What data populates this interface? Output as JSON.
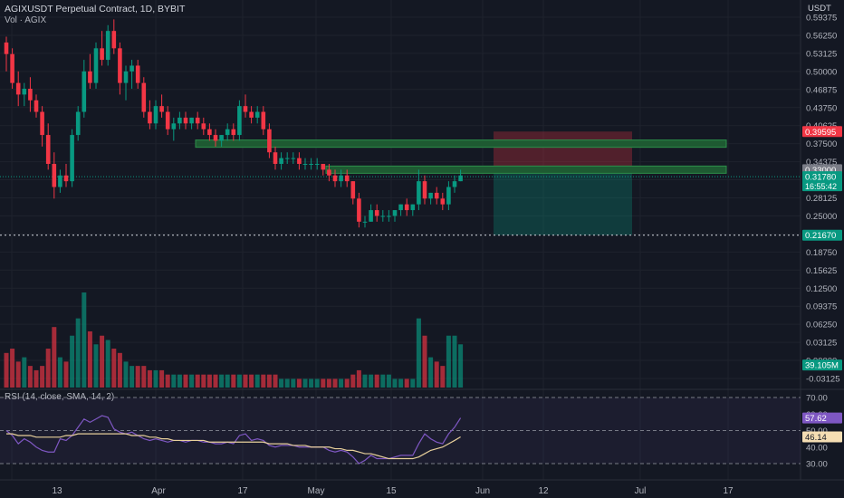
{
  "header": {
    "title": "AGIXUSDT Perpetual Contract, 1D, BYBIT",
    "volume_label": "Vol · AGIX",
    "currency": "USDT"
  },
  "price_axis": {
    "ticks": [
      "0.59375",
      "0.56250",
      "0.53125",
      "0.50000",
      "0.46875",
      "0.43750",
      "0.40625",
      "0.37500",
      "0.34375",
      "0.31250",
      "0.28125",
      "0.25000",
      "0.21875",
      "0.18750",
      "0.15625",
      "0.12500",
      "0.09375",
      "0.06250",
      "0.03125",
      "0.00000",
      "-0.03125"
    ],
    "min": -0.03125,
    "max": 0.59375,
    "badges": [
      {
        "text": "0.39595",
        "value": 0.39595,
        "color": "#f23645"
      },
      {
        "text": "0.33000",
        "value": 0.33,
        "color": "#7a7d87"
      },
      {
        "text": "0.31780",
        "value": 0.3178,
        "color": "#089981",
        "sub": "16:55:42"
      },
      {
        "text": "0.21670",
        "value": 0.2167,
        "color": "#089981"
      },
      {
        "text": "39.105M",
        "value": -0.008,
        "color": "#089981"
      }
    ]
  },
  "rsi": {
    "label": "RSI (14, close, SMA, 14, 2)",
    "ticks": [
      "70.00",
      "60.00",
      "50.00",
      "40.00",
      "30.00"
    ],
    "badges": [
      {
        "text": "57.62",
        "value": 57.62,
        "color": "#7e57c2"
      },
      {
        "text": "46.14",
        "value": 46.14,
        "color": "#f5deb3"
      }
    ]
  },
  "time_axis": [
    "13",
    "Apr",
    "17",
    "May",
    "15",
    "Jun",
    "12",
    "Jul",
    "17"
  ],
  "colors": {
    "up": "#089981",
    "down": "#f23645",
    "rsi": "#7e57c2",
    "rsi_ma": "#e8d09b",
    "zone": "#1e5a32"
  },
  "chart_data": {
    "type": "candlestick",
    "candles": [
      [
        0.55,
        0.56,
        0.5,
        0.53
      ],
      [
        0.53,
        0.54,
        0.47,
        0.48
      ],
      [
        0.48,
        0.5,
        0.44,
        0.46
      ],
      [
        0.46,
        0.48,
        0.44,
        0.47
      ],
      [
        0.47,
        0.49,
        0.43,
        0.45
      ],
      [
        0.45,
        0.46,
        0.42,
        0.43
      ],
      [
        0.43,
        0.44,
        0.37,
        0.39
      ],
      [
        0.39,
        0.41,
        0.33,
        0.34
      ],
      [
        0.34,
        0.36,
        0.28,
        0.3
      ],
      [
        0.3,
        0.33,
        0.29,
        0.32
      ],
      [
        0.32,
        0.34,
        0.3,
        0.31
      ],
      [
        0.31,
        0.4,
        0.3,
        0.39
      ],
      [
        0.39,
        0.44,
        0.38,
        0.43
      ],
      [
        0.43,
        0.52,
        0.42,
        0.5
      ],
      [
        0.5,
        0.53,
        0.47,
        0.48
      ],
      [
        0.48,
        0.55,
        0.47,
        0.54
      ],
      [
        0.54,
        0.57,
        0.51,
        0.52
      ],
      [
        0.52,
        0.58,
        0.51,
        0.57
      ],
      [
        0.57,
        0.59,
        0.53,
        0.54
      ],
      [
        0.54,
        0.55,
        0.46,
        0.48
      ],
      [
        0.48,
        0.51,
        0.45,
        0.5
      ],
      [
        0.5,
        0.52,
        0.47,
        0.51
      ],
      [
        0.51,
        0.52,
        0.47,
        0.48
      ],
      [
        0.48,
        0.49,
        0.42,
        0.43
      ],
      [
        0.43,
        0.45,
        0.4,
        0.41
      ],
      [
        0.41,
        0.45,
        0.4,
        0.44
      ],
      [
        0.44,
        0.46,
        0.42,
        0.43
      ],
      [
        0.43,
        0.44,
        0.39,
        0.4
      ],
      [
        0.4,
        0.42,
        0.38,
        0.41
      ],
      [
        0.41,
        0.43,
        0.4,
        0.42
      ],
      [
        0.42,
        0.43,
        0.4,
        0.41
      ],
      [
        0.41,
        0.42,
        0.4,
        0.42
      ],
      [
        0.42,
        0.43,
        0.4,
        0.41
      ],
      [
        0.41,
        0.42,
        0.39,
        0.4
      ],
      [
        0.4,
        0.41,
        0.38,
        0.39
      ],
      [
        0.39,
        0.4,
        0.37,
        0.38
      ],
      [
        0.38,
        0.39,
        0.37,
        0.39
      ],
      [
        0.39,
        0.41,
        0.38,
        0.4
      ],
      [
        0.4,
        0.41,
        0.38,
        0.39
      ],
      [
        0.39,
        0.45,
        0.38,
        0.44
      ],
      [
        0.44,
        0.46,
        0.42,
        0.43
      ],
      [
        0.43,
        0.44,
        0.41,
        0.42
      ],
      [
        0.42,
        0.44,
        0.41,
        0.43
      ],
      [
        0.43,
        0.44,
        0.39,
        0.4
      ],
      [
        0.4,
        0.41,
        0.35,
        0.36
      ],
      [
        0.36,
        0.37,
        0.33,
        0.34
      ],
      [
        0.34,
        0.36,
        0.33,
        0.35
      ],
      [
        0.35,
        0.36,
        0.34,
        0.35
      ],
      [
        0.35,
        0.36,
        0.34,
        0.35
      ],
      [
        0.35,
        0.36,
        0.33,
        0.34
      ],
      [
        0.34,
        0.35,
        0.33,
        0.34
      ],
      [
        0.34,
        0.35,
        0.33,
        0.34
      ],
      [
        0.34,
        0.35,
        0.33,
        0.34
      ],
      [
        0.34,
        0.34,
        0.32,
        0.33
      ],
      [
        0.33,
        0.34,
        0.31,
        0.32
      ],
      [
        0.32,
        0.33,
        0.3,
        0.31
      ],
      [
        0.31,
        0.33,
        0.3,
        0.32
      ],
      [
        0.32,
        0.33,
        0.3,
        0.31
      ],
      [
        0.31,
        0.31,
        0.27,
        0.28
      ],
      [
        0.28,
        0.29,
        0.23,
        0.24
      ],
      [
        0.24,
        0.25,
        0.23,
        0.24
      ],
      [
        0.24,
        0.27,
        0.24,
        0.26
      ],
      [
        0.26,
        0.27,
        0.24,
        0.25
      ],
      [
        0.25,
        0.26,
        0.24,
        0.25
      ],
      [
        0.25,
        0.26,
        0.24,
        0.25
      ],
      [
        0.25,
        0.26,
        0.24,
        0.26
      ],
      [
        0.26,
        0.27,
        0.25,
        0.27
      ],
      [
        0.27,
        0.28,
        0.25,
        0.26
      ],
      [
        0.26,
        0.27,
        0.25,
        0.27
      ],
      [
        0.27,
        0.33,
        0.26,
        0.31
      ],
      [
        0.31,
        0.32,
        0.27,
        0.28
      ],
      [
        0.28,
        0.29,
        0.27,
        0.29
      ],
      [
        0.29,
        0.3,
        0.27,
        0.28
      ],
      [
        0.28,
        0.29,
        0.26,
        0.27
      ],
      [
        0.27,
        0.31,
        0.26,
        0.3
      ],
      [
        0.3,
        0.32,
        0.29,
        0.31
      ],
      [
        0.31,
        0.33,
        0.31,
        0.32
      ]
    ],
    "volume": [
      8,
      9,
      6,
      7,
      5,
      4,
      5,
      9,
      14,
      7,
      6,
      12,
      16,
      22,
      13,
      10,
      12,
      11,
      9,
      8,
      6,
      5,
      5,
      5,
      4,
      4,
      4,
      3,
      3,
      3,
      3,
      3,
      3,
      3,
      3,
      3,
      3,
      3,
      3,
      3,
      3,
      3,
      3,
      3,
      3,
      3,
      2,
      2,
      2,
      2,
      2,
      2,
      2,
      2,
      2,
      2,
      2,
      2,
      3,
      4,
      3,
      3,
      3,
      3,
      3,
      2,
      2,
      2,
      2,
      16,
      12,
      7,
      6,
      5,
      12,
      12,
      10
    ],
    "rsi_values": [
      50,
      47,
      42,
      45,
      43,
      40,
      38,
      37,
      37,
      45,
      44,
      47,
      52,
      57,
      55,
      57,
      59,
      58,
      51,
      49,
      48,
      49,
      47,
      45,
      44,
      45,
      44,
      43,
      44,
      44,
      43,
      44,
      44,
      43,
      43,
      42,
      42,
      43,
      42,
      47,
      48,
      44,
      45,
      44,
      41,
      40,
      41,
      41,
      41,
      40,
      40,
      40,
      40,
      40,
      38,
      37,
      38,
      37,
      34,
      30,
      32,
      35,
      33,
      33,
      33,
      34,
      35,
      35,
      35,
      42,
      48,
      45,
      43,
      42,
      48,
      52,
      57.62
    ],
    "rsi_ma_values": [
      48,
      48,
      47,
      47,
      47,
      46,
      46,
      46,
      46,
      46,
      47,
      47,
      48,
      48,
      48,
      48,
      48,
      48,
      48,
      48,
      48,
      47,
      47,
      47,
      46,
      46,
      45,
      45,
      44,
      44,
      44,
      44,
      44,
      44,
      43,
      43,
      43,
      43,
      43,
      43,
      43,
      43,
      43,
      43,
      42,
      42,
      42,
      42,
      41,
      41,
      41,
      40,
      40,
      40,
      40,
      39,
      39,
      38,
      38,
      37,
      36,
      36,
      35,
      34,
      33,
      33,
      33,
      33,
      33,
      34,
      36,
      38,
      39,
      40,
      42,
      44,
      46.14
    ],
    "trade_zones": {
      "stop": 0.39595,
      "entry": 0.33,
      "target": 0.2167
    },
    "levels": [
      0.375,
      0.33
    ],
    "dotted_levels": [
      0.3178,
      0.2167
    ]
  }
}
